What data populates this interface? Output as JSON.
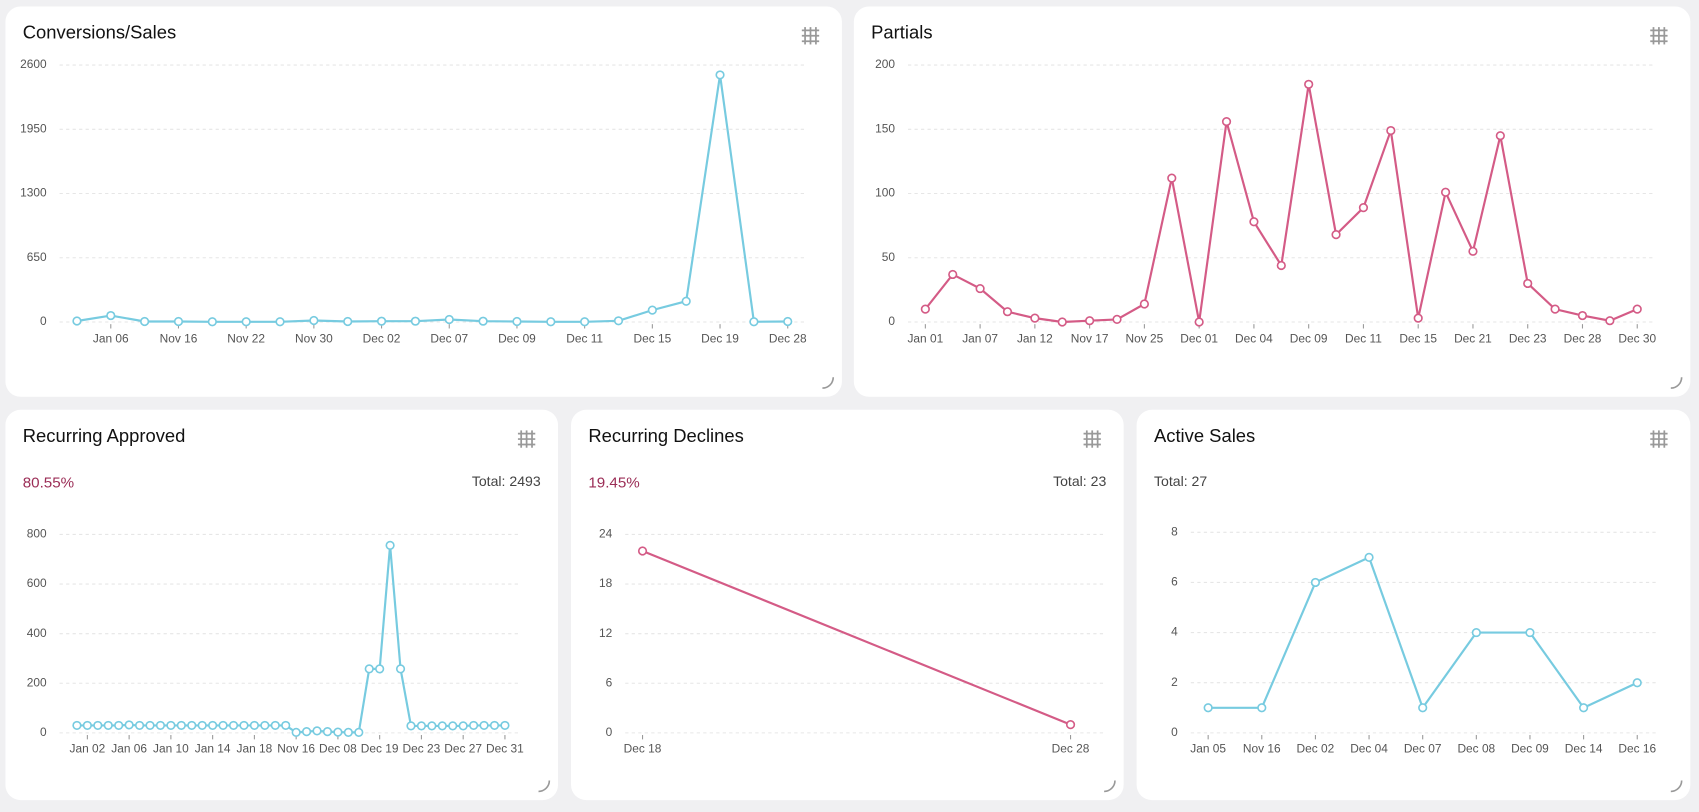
{
  "chart_data": [
    {
      "type": "line",
      "title": "Conversions/Sales",
      "color": "#77cbe0",
      "categories": [
        null,
        "Jan 06",
        null,
        "Nov 16",
        null,
        "Nov 22",
        null,
        "Nov 30",
        null,
        "Dec 02",
        null,
        "Dec 07",
        null,
        "Dec 09",
        null,
        "Dec 11",
        null,
        "Dec 15",
        null,
        "Dec 19",
        null,
        "Dec 28"
      ],
      "values": [
        10,
        65,
        5,
        5,
        2,
        2,
        2,
        15,
        5,
        8,
        8,
        25,
        8,
        5,
        2,
        2,
        12,
        120,
        210,
        2500,
        2,
        5
      ],
      "ylim": [
        0,
        2600
      ],
      "yticks": [
        0,
        650,
        1300,
        1950,
        2600
      ],
      "grid": true
    },
    {
      "type": "line",
      "title": "Partials",
      "color": "#d45b86",
      "categories": [
        "Jan 01",
        null,
        "Jan 07",
        null,
        "Jan 12",
        null,
        "Nov 17",
        null,
        "Nov 25",
        null,
        "Dec 01",
        null,
        "Dec 04",
        null,
        "Dec 09",
        null,
        "Dec 11",
        null,
        "Dec 15",
        null,
        "Dec 21",
        null,
        "Dec 23",
        null,
        "Dec 28",
        null,
        "Dec 30"
      ],
      "values": [
        10,
        37,
        26,
        8,
        3,
        0,
        1,
        2,
        14,
        112,
        0,
        156,
        78,
        44,
        185,
        68,
        89,
        149,
        3,
        101,
        55,
        145,
        30,
        10,
        5,
        1,
        10
      ],
      "ylim": [
        0,
        200
      ],
      "yticks": [
        0,
        50,
        100,
        150,
        200
      ],
      "grid": true
    },
    {
      "type": "line",
      "title": "Recurring Approved",
      "color": "#77cbe0",
      "rate": "80.55%",
      "total": "Total: 2493",
      "categories": [
        null,
        "Jan 02",
        null,
        null,
        null,
        "Jan 06",
        null,
        null,
        null,
        "Jan 10",
        null,
        null,
        null,
        "Jan 14",
        null,
        null,
        null,
        "Jan 18",
        null,
        null,
        null,
        "Nov 16",
        null,
        null,
        null,
        "Dec 08",
        null,
        null,
        null,
        "Dec 19",
        null,
        null,
        null,
        "Dec 23",
        null,
        null,
        null,
        "Dec 27",
        null,
        null,
        null,
        "Dec 31"
      ],
      "values": [
        30,
        30,
        30,
        30,
        30,
        32,
        30,
        30,
        30,
        30,
        30,
        30,
        30,
        30,
        30,
        30,
        30,
        30,
        30,
        30,
        30,
        2,
        5,
        8,
        5,
        3,
        2,
        2,
        258,
        258,
        756,
        258,
        28,
        28,
        28,
        28,
        28,
        28,
        30,
        30,
        30,
        30
      ],
      "ylim": [
        0,
        800
      ],
      "yticks": [
        0,
        200,
        400,
        600,
        800
      ],
      "grid": true
    },
    {
      "type": "line",
      "title": "Recurring Declines",
      "color": "#d45b86",
      "rate": "19.45%",
      "total": "Total: 23",
      "categories": [
        "Dec 18",
        "Dec 28"
      ],
      "values": [
        22,
        1
      ],
      "ylim": [
        0,
        24
      ],
      "yticks": [
        0,
        6,
        12,
        18,
        24
      ],
      "grid": true
    },
    {
      "type": "line",
      "title": "Active Sales",
      "color": "#77cbe0",
      "total": "Total: 27",
      "categories": [
        "Jan 05",
        "Nov 16",
        "Dec 02",
        "Dec 04",
        "Dec 07",
        "Dec 08",
        "Dec 09",
        "Dec 14",
        "Dec 16"
      ],
      "values": [
        1,
        1,
        6,
        7,
        1,
        4,
        4,
        1,
        2
      ],
      "ylim": [
        0,
        8
      ],
      "yticks": [
        0,
        2,
        4,
        6,
        8
      ],
      "grid": true
    }
  ]
}
